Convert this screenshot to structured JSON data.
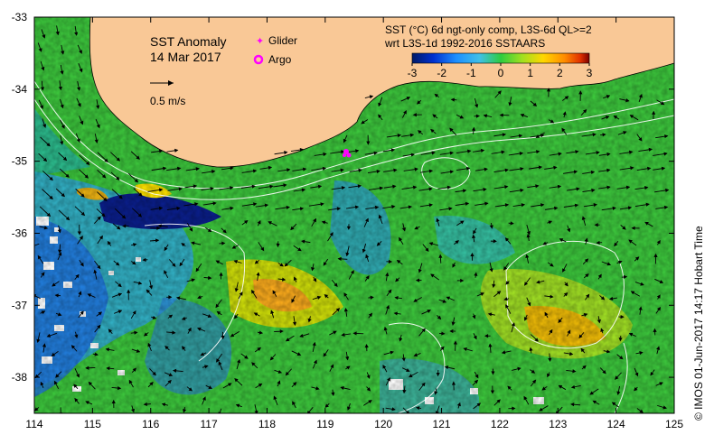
{
  "map": {
    "title": "SST Anomaly",
    "date": "14 Mar 2017",
    "vector_scale_label": "0.5 m/s",
    "legend": {
      "glider_label": "Glider",
      "argo_label": "Argo",
      "glider_color": "#ff00ff",
      "argo_color": "#ff00ff"
    },
    "product": {
      "line1": "SST (°C) 6d ngt-only comp, L3S-6d QL>=2",
      "line2": "wrt L3S-1d 1992-2016 SSTAARS"
    },
    "colorbar": {
      "ticks": [
        "-3",
        "-2",
        "-1",
        "0",
        "1",
        "2",
        "3"
      ],
      "range": [
        -3,
        3
      ],
      "colors": [
        "#001a66",
        "#0030d0",
        "#1e90ff",
        "#40c0e8",
        "#2ecc40",
        "#a0e020",
        "#ffd700",
        "#ff8c00",
        "#e03000",
        "#7a0000"
      ]
    },
    "x_axis": {
      "ticks": [
        "114",
        "115",
        "116",
        "117",
        "118",
        "119",
        "120",
        "121",
        "122",
        "123",
        "124",
        "125"
      ],
      "range": [
        114,
        125
      ]
    },
    "y_axis": {
      "ticks": [
        "-33",
        "-34",
        "-35",
        "-36",
        "-37",
        "-38"
      ],
      "range": [
        -38.5,
        -33
      ]
    },
    "land_color": "#f9c896",
    "credit": "©  IMOS 01-Jun-2017 14:17 Hobart Time"
  }
}
